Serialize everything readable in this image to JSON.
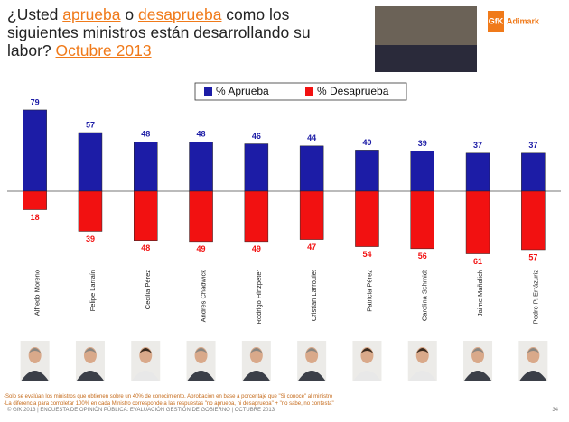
{
  "chart_data": {
    "type": "diverging-bar",
    "title_lines": [
      [
        "¿Usted ",
        "aprueba",
        " o ",
        "desaprueba",
        " como los"
      ],
      [
        "siguientes ministros están desarrollando su"
      ],
      [
        "labor? ",
        "Octubre 2013"
      ]
    ],
    "logo": [
      "GfK",
      "Adimark"
    ],
    "categories": [
      "Alfredo Moreno",
      "Felipe Larraín",
      "Cecilia Pérez",
      "Andrés Chadwick",
      "Rodrigo Hinzpeter",
      "Cristian Larroulet",
      "Patricia Pérez",
      "Carolina Schmidt",
      "Jaime Mañalich",
      "Pedro P. Errázuriz"
    ],
    "series": [
      {
        "name": "% Aprueba",
        "color": "#1c1ca6",
        "values": [
          79,
          57,
          48,
          48,
          46,
          44,
          40,
          39,
          37,
          37
        ]
      },
      {
        "name": "% Desaprueba",
        "color": "#f21111",
        "values": [
          18,
          39,
          48,
          49,
          49,
          47,
          54,
          56,
          61,
          57
        ]
      }
    ],
    "notes": [
      "-Solo se evalúan los ministros que obtienen sobre un 40% de conocimiento. Aprobación en base a porcentaje que \"Si conoce\" al ministro",
      "-La diferencia para completar 100% en cada Ministro corresponde a las respuestas \"no aprueba, ni desaprueba\" + \"no sabe, no contesta\""
    ],
    "footer": "© GfK 2013 | ENCUESTA DE OPINIÓN PÚBLICA: EVALUACIÓN GESTIÓN DE GOBIERNO | OCTUBRE 2013",
    "page_number": "34"
  }
}
